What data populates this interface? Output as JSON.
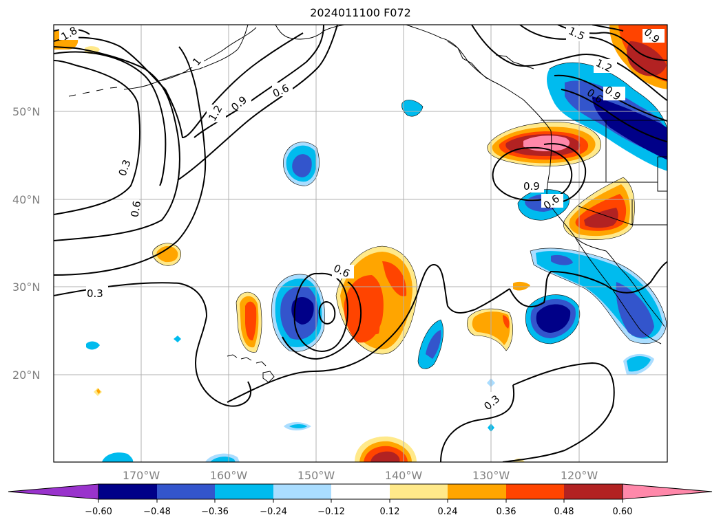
{
  "title": "2024011100 F072",
  "lat_labels": [
    "50°N",
    "40°N",
    "30°N",
    "20°N"
  ],
  "lon_labels": [
    "170°W",
    "160°W",
    "150°W",
    "140°W",
    "130°W",
    "120°W"
  ],
  "colorbar": {
    "ticks": [
      "−0.60",
      "−0.48",
      "−0.36",
      "−0.24",
      "−0.12",
      "0.12",
      "0.24",
      "0.36",
      "0.48",
      "0.60"
    ],
    "colors": {
      "under": "#9933cc",
      "n060": "#000088",
      "n048": "#3355cc",
      "n036": "#00bbee",
      "n024": "#aaddff",
      "neutral": "#ffffff",
      "p012": "#ffe98a",
      "p024": "#ffa500",
      "p036": "#ff4400",
      "p048": "#b22222",
      "over": "#ff88aa"
    }
  },
  "contour_labels": [
    "1.8",
    "1",
    "1.2",
    "0.9",
    "0.6",
    "0.3",
    "0.6",
    "0.3",
    "1.5",
    "1.2",
    "0.9",
    "0.6",
    "0.9",
    "0.6",
    "0.6",
    "0.3",
    "0.9"
  ]
}
